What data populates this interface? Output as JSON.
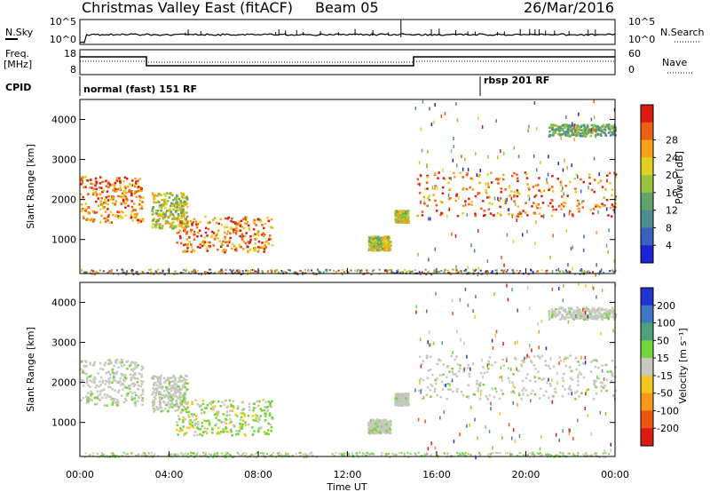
{
  "header": {
    "title": "Christmas Valley East (fitACF)",
    "beam": "Beam 05",
    "date": "26/Mar/2016"
  },
  "panels": {
    "nsky": {
      "left_label": "N.Sky",
      "right_label": "N.Search",
      "left_ticks": [
        "10^5",
        "10^0"
      ],
      "right_ticks": [
        "10^5",
        "10^0"
      ]
    },
    "freq": {
      "left_label_1": "Freq.",
      "left_label_2": "[MHz]",
      "right_label": "Nave",
      "left_ticks": [
        "18",
        "8"
      ],
      "right_ticks": [
        "60",
        "0"
      ]
    },
    "cpid": {
      "label": "CPID",
      "mode1": "normal (fast) 151 RF",
      "mode2": "rbsp 201 RF"
    }
  },
  "chart_data": [
    {
      "type": "heatmap",
      "name": "power",
      "ylabel": "Slant Range [km]",
      "colorbar_label": "Power [dB]",
      "colorbar_ticks": [
        "4",
        "8",
        "12",
        "16",
        "20",
        "24",
        "28"
      ],
      "colorbar_colors": [
        "#1c22d8",
        "#3b61c0",
        "#4f8c8e",
        "#5fa46a",
        "#9ac23f",
        "#e0d021",
        "#f5a214",
        "#ec5f14",
        "#dc1a14"
      ],
      "ylim": [
        150,
        4500
      ],
      "yticks": [
        1000,
        2000,
        3000,
        4000
      ],
      "xlim": [
        "00:00",
        "24:00"
      ],
      "xticks": [
        "00:00",
        "04:00",
        "08:00",
        "12:00",
        "16:00",
        "20:00",
        "00:00"
      ],
      "blobs": [
        {
          "t": [
            0.0,
            2.8
          ],
          "r": [
            1450,
            2600
          ],
          "level": "high"
        },
        {
          "t": [
            3.2,
            4.8
          ],
          "r": [
            1300,
            2200
          ],
          "level": "mid"
        },
        {
          "t": [
            4.3,
            8.6
          ],
          "r": [
            700,
            1600
          ],
          "level": "high"
        },
        {
          "t": [
            14.1,
            14.7
          ],
          "r": [
            1450,
            1750
          ],
          "level": "mid"
        },
        {
          "t": [
            12.9,
            13.9
          ],
          "r": [
            750,
            1100
          ],
          "level": "mid"
        },
        {
          "t": [
            15.1,
            24.0
          ],
          "r": [
            1600,
            2700
          ],
          "level": "high"
        },
        {
          "t": [
            21.0,
            24.0
          ],
          "r": [
            3600,
            3900
          ],
          "level": "low"
        }
      ]
    },
    {
      "type": "heatmap",
      "name": "velocity",
      "ylabel": "Slant Range [km]",
      "colorbar_label": "Velocity [m s⁻¹]",
      "colorbar_ticks": [
        "200",
        "100",
        "50",
        "15",
        "-15",
        "-50",
        "-100",
        "-200"
      ],
      "colorbar_colors": [
        "#2234d0",
        "#3d78c0",
        "#4fa07c",
        "#74d43c",
        "#c8c8c0",
        "#f2c820",
        "#f59a18",
        "#ec5414",
        "#dc1a14"
      ],
      "ylim": [
        150,
        4500
      ],
      "yticks": [
        1000,
        2000,
        3000,
        4000
      ],
      "xlabel": "Time UT",
      "xticks": [
        "00:00",
        "04:00",
        "08:00",
        "12:00",
        "16:00",
        "20:00",
        "00:00"
      ]
    }
  ],
  "colors": {
    "frame": "#000000",
    "background": "#ffffff"
  }
}
